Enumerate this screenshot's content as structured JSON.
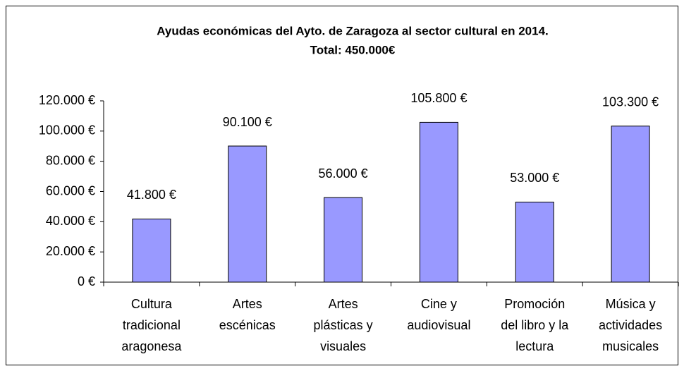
{
  "chart_data": {
    "type": "bar",
    "title": "Ayudas económicas del Ayto. de Zaragoza al sector cultural en 2014.",
    "subtitle": "Total:  450.000€",
    "categories": [
      "Cultura\ntradicional\naragonesa",
      "Artes\nescénicas",
      "Artes\nplásticas y\nvisuales",
      "Cine y\naudiovisual",
      "Promoción\ndel libro y la\nlectura",
      "Música y\nactividades\nmusicales"
    ],
    "values": [
      41800,
      90100,
      56000,
      105800,
      53000,
      103300
    ],
    "value_labels": [
      "41.800 €",
      "90.100 €",
      "56.000 €",
      "105.800 €",
      "53.000 €",
      "103.300 €"
    ],
    "color": "#9999ff",
    "ylim": [
      0,
      120000
    ],
    "yticks": [
      {
        "value": 0,
        "label": "0 €"
      },
      {
        "value": 20000,
        "label": "20.000 €"
      },
      {
        "value": 40000,
        "label": "40.000 €"
      },
      {
        "value": 60000,
        "label": "60.000 €"
      },
      {
        "value": 80000,
        "label": "80.000 €"
      },
      {
        "value": 100000,
        "label": "100.000 €"
      },
      {
        "value": 120000,
        "label": "120.000 €"
      }
    ],
    "grid": false
  }
}
